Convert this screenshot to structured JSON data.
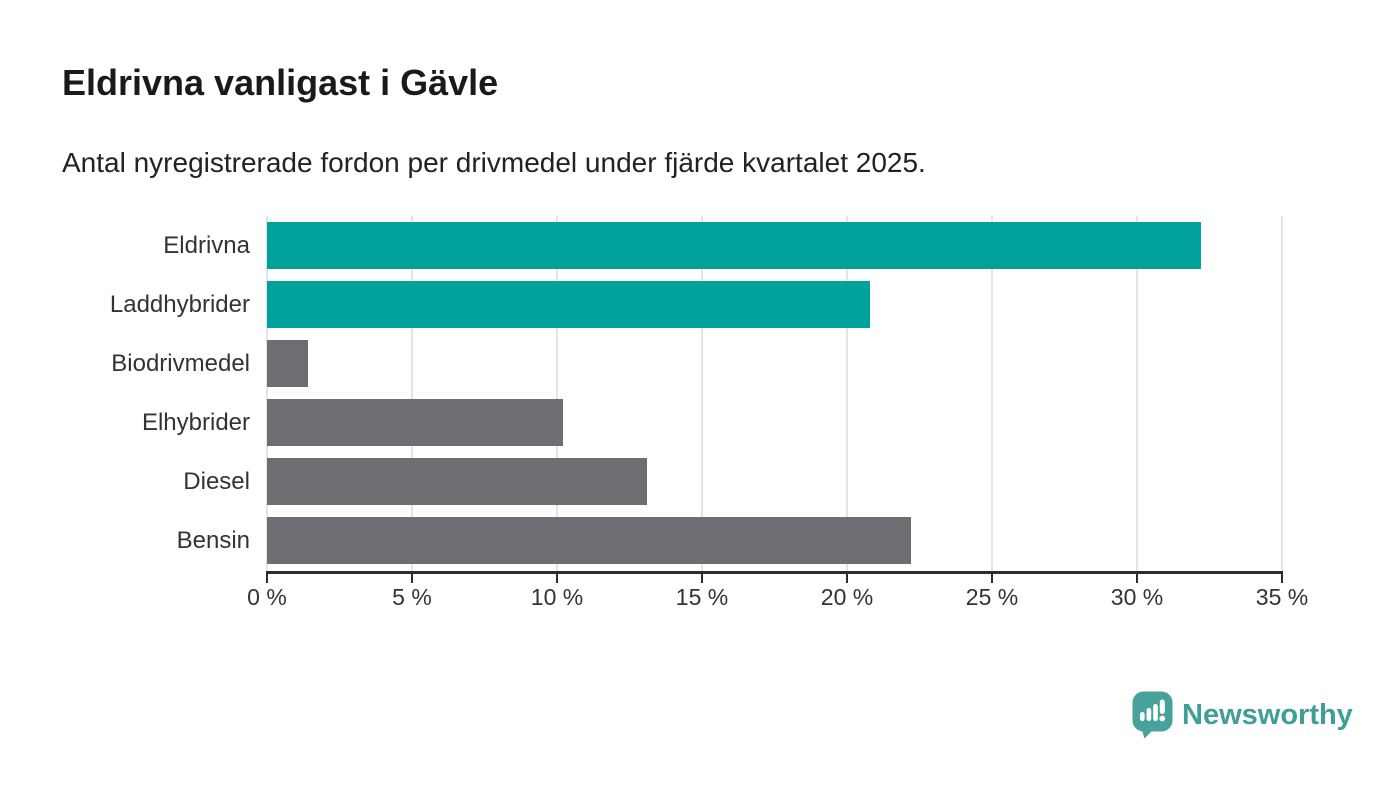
{
  "title": "Eldrivna vanligast i Gävle",
  "subtitle": "Antal nyregistrerade fordon per drivmedel under fjärde kvartalet 2025.",
  "chart_data": {
    "type": "bar",
    "orientation": "horizontal",
    "categories": [
      "Eldrivna",
      "Laddhybrider",
      "Biodrivmedel",
      "Elhybrider",
      "Diesel",
      "Bensin"
    ],
    "values": [
      32.2,
      20.8,
      1.4,
      10.2,
      13.1,
      22.2
    ],
    "unit": "%",
    "bar_colors": [
      "#00a29b",
      "#00a29b",
      "#6d6d72",
      "#6d6d72",
      "#6d6d72",
      "#6d6d72"
    ],
    "highlight_color": "#00a29b",
    "default_color": "#6d6d72",
    "title": "Eldrivna vanligast i Gävle",
    "xlabel": "",
    "ylabel": "",
    "xlim": [
      0,
      35
    ],
    "x_tick_labels": [
      "0 %",
      "5 %",
      "10 %",
      "15 %",
      "20 %",
      "25 %",
      "30 %",
      "35 %"
    ],
    "grid": true,
    "gridline_color": "#e4e4e4",
    "axis_color": "#2d2d2d",
    "legend": "none"
  },
  "branding": {
    "logo_text": "Newsworthy",
    "logo_color": "#3f9e98",
    "logo_icon": "newsworthy-speech-bubble-bar-chart-icon",
    "logo_icon_color": "#47a29c"
  }
}
